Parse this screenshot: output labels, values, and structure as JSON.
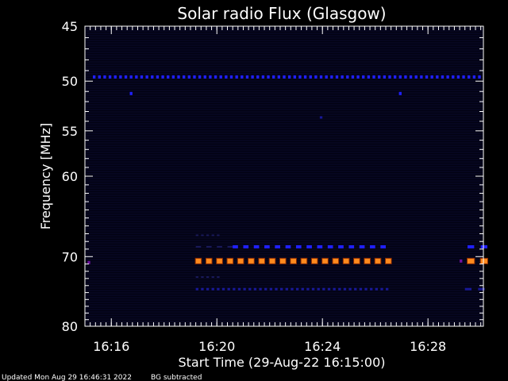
{
  "colors": {
    "background": "#000000",
    "plot_background": "#020212",
    "axis": "#ffffff",
    "channel_line": "#0a0a2c",
    "blue": "#2020ff",
    "dark_blue": "#181896",
    "faint_blue": "#1a1a5a",
    "purple": "#7010a0",
    "orange": "#ff8a1e"
  },
  "footer": {
    "updated": "Updated Mon Aug 29 16:46:31 2022",
    "note": "BG subtracted"
  },
  "chart_data": {
    "type": "heatmap",
    "title": "Solar radio Flux (Glasgow)",
    "xlabel": "Start Time (29-Aug-22 16:15:00)",
    "ylabel": "Frequency [MHz]",
    "x_unit": "minutes after 16:15:00",
    "xlim": [
      0,
      15.1
    ],
    "ylim": [
      45,
      80
    ],
    "y_scale": "log",
    "y_inverted": true,
    "grid": false,
    "x_ticks": [
      {
        "value": 1,
        "label": "16:16"
      },
      {
        "value": 5,
        "label": "16:20"
      },
      {
        "value": 9,
        "label": "16:24"
      },
      {
        "value": 13,
        "label": "16:28"
      }
    ],
    "x_minor_step": 0.2,
    "y_ticks": [
      {
        "value": 45,
        "label": "45"
      },
      {
        "value": 50,
        "label": "50"
      },
      {
        "value": 55,
        "label": "55"
      },
      {
        "value": 60,
        "label": "60"
      },
      {
        "value": 70,
        "label": "70"
      },
      {
        "value": 80,
        "label": "80"
      }
    ],
    "y_minor_ticks": [
      46,
      47,
      48,
      49,
      51,
      52,
      53,
      54,
      56,
      57,
      58,
      59,
      61,
      62,
      63,
      64,
      65,
      66,
      67,
      68,
      69,
      71,
      72,
      73,
      74,
      75,
      76,
      77,
      78,
      79
    ],
    "bands": [
      {
        "freq": 49.6,
        "t_start": 0.3,
        "t_end": 15.0,
        "period": 0.2,
        "color": "blue",
        "level": "medium"
      },
      {
        "freq": 51.2,
        "t_start": 1.7,
        "t_end": 1.8,
        "period": 0.2,
        "color": "blue",
        "level": "medium"
      },
      {
        "freq": 51.2,
        "t_start": 11.9,
        "t_end": 12.0,
        "period": 0.2,
        "color": "blue",
        "level": "medium"
      },
      {
        "freq": 53.6,
        "t_start": 8.9,
        "t_end": 9.0,
        "period": 0.2,
        "color": "dark_blue",
        "level": "low"
      },
      {
        "freq": 67.2,
        "t_start": 4.2,
        "t_end": 5.0,
        "period": 0.2,
        "color": "faint_blue",
        "level": "faint"
      },
      {
        "freq": 68.7,
        "t_start": 4.2,
        "t_end": 5.6,
        "period": 0.4,
        "color": "faint_blue",
        "level": "faint"
      },
      {
        "freq": 68.7,
        "t_start": 5.6,
        "t_end": 11.5,
        "period": 0.4,
        "color": "blue",
        "level": "medium"
      },
      {
        "freq": 68.7,
        "t_start": 14.5,
        "t_end": 15.0,
        "period": 0.5,
        "color": "blue",
        "level": "medium"
      },
      {
        "freq": 70.6,
        "t_start": 4.2,
        "t_end": 11.5,
        "period": 0.4,
        "color": "orange",
        "level": "high"
      },
      {
        "freq": 70.6,
        "t_start": 14.5,
        "t_end": 15.0,
        "period": 0.5,
        "color": "orange",
        "level": "high"
      },
      {
        "freq": 70.6,
        "t_start": 14.2,
        "t_end": 14.3,
        "period": 0.2,
        "color": "purple",
        "level": "medium"
      },
      {
        "freq": 70.8,
        "t_start": 0.1,
        "t_end": 0.2,
        "period": 0.2,
        "color": "purple",
        "level": "medium"
      },
      {
        "freq": 72.8,
        "t_start": 4.2,
        "t_end": 5.0,
        "period": 0.2,
        "color": "faint_blue",
        "level": "faint"
      },
      {
        "freq": 74.5,
        "t_start": 4.2,
        "t_end": 11.5,
        "period": 0.2,
        "color": "dark_blue",
        "level": "low"
      },
      {
        "freq": 74.5,
        "t_start": 14.4,
        "t_end": 15.0,
        "period": 0.5,
        "color": "dark_blue",
        "level": "low"
      }
    ]
  }
}
